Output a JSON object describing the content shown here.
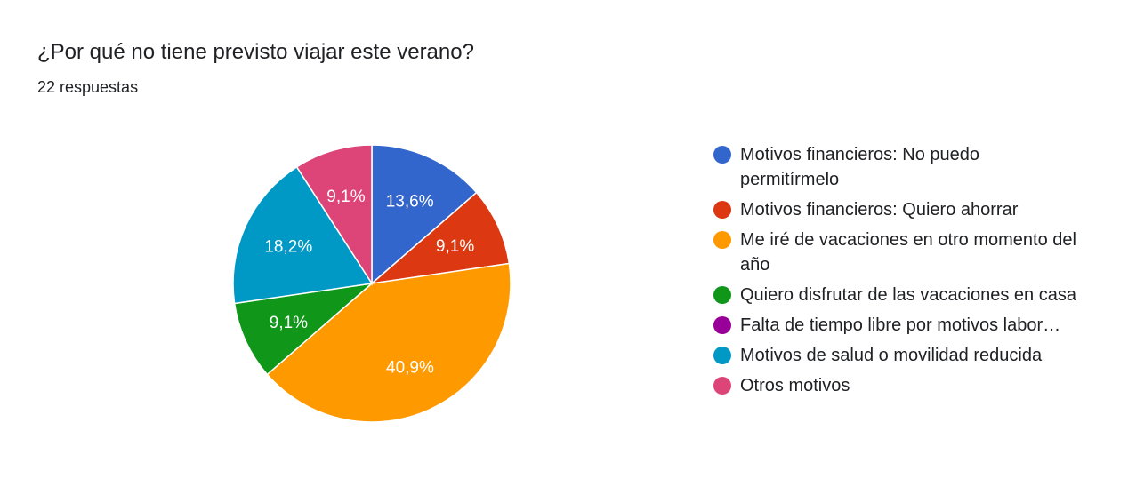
{
  "header": {
    "title": "¿Por qué no tiene previsto viajar este verano?",
    "responses": "22 respuestas"
  },
  "chart_data": {
    "type": "pie",
    "start_angle_deg": 90,
    "direction": "clockwise",
    "slices": [
      {
        "label": "Motivos financieros: No puedo permitírmelo",
        "value": 13.6,
        "display": "13,6%",
        "color": "#3366cc"
      },
      {
        "label": "Motivos financieros: Quiero ahorrar",
        "value": 9.1,
        "display": "9,1%",
        "color": "#dc3912"
      },
      {
        "label": "Me iré de vacaciones en otro momento del año",
        "value": 40.9,
        "display": "40,9%",
        "color": "#ff9900"
      },
      {
        "label": "Quiero disfrutar de las vacaciones en casa",
        "value": 9.1,
        "display": "9,1%",
        "color": "#109618"
      },
      {
        "label": "Falta de tiempo libre por motivos labor…",
        "value": 0,
        "display": "",
        "color": "#990099"
      },
      {
        "label": "Motivos de salud o movilidad reducida",
        "value": 18.2,
        "display": "18,2%",
        "color": "#0099c6"
      },
      {
        "label": "Otros motivos",
        "value": 9.1,
        "display": "9,1%",
        "color": "#dd4477"
      }
    ],
    "legend_position": "right"
  }
}
